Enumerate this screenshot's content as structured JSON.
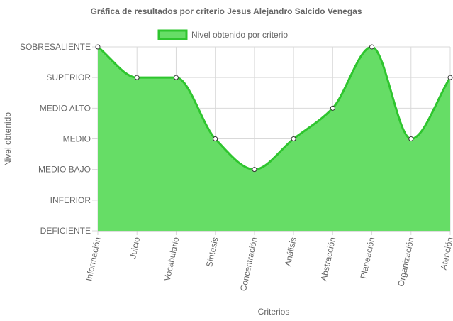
{
  "chart_data": {
    "type": "area",
    "title": "Gráfica de resultados por criterio Jesus Alejandro Salcido Venegas",
    "xlabel": "Criterios",
    "ylabel": "Nivel obtenido",
    "categories": [
      "Información",
      "Juicio",
      "Vocabulario",
      "Síntesis",
      "Concentración",
      "Análisis",
      "Abstracción",
      "Planeación",
      "Organización",
      "Atención"
    ],
    "y_levels": [
      "DEFICIENTE",
      "INFERIOR",
      "MEDIO BAJO",
      "MEDIO",
      "MEDIO ALTO",
      "SUPERIOR",
      "SOBRESALIENTE"
    ],
    "series": [
      {
        "name": "Nivel obtenido por criterio",
        "values": [
          6,
          5,
          5,
          3,
          2,
          3,
          4,
          6,
          3,
          5
        ]
      }
    ],
    "ylim": [
      0,
      6
    ],
    "legend_position": "top",
    "grid": true,
    "colors": {
      "fill": "#66dd66",
      "line": "#2ec52e",
      "point_fill": "#ffffff",
      "point_stroke": "#333333",
      "grid": "#d9d9d9"
    }
  }
}
